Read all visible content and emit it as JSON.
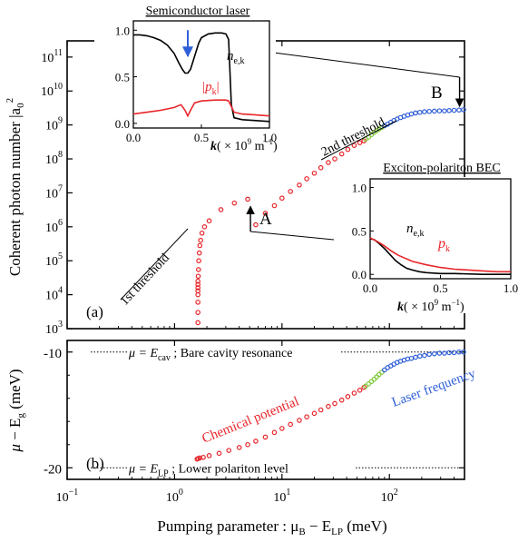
{
  "chart_data": [
    {
      "panel": "a",
      "type": "scatter",
      "panel_label": "(a)",
      "ylabel_text": "Coherent photon number |a",
      "ylabel_sub": "0",
      "ylabel_sup": "2",
      "x_scale": "log",
      "y_scale": "log",
      "xlim": [
        0.1,
        500
      ],
      "ylim": [
        1000,
        300000000000
      ],
      "y_ticks": [
        {
          "v": 1000,
          "base": "10",
          "exp": "3"
        },
        {
          "v": 10000,
          "base": "10",
          "exp": "4"
        },
        {
          "v": 100000,
          "base": "10",
          "exp": "5"
        },
        {
          "v": 1000000,
          "base": "10",
          "exp": "6"
        },
        {
          "v": 10000000,
          "base": "10",
          "exp": "7"
        },
        {
          "v": 100000000,
          "base": "10",
          "exp": "8"
        },
        {
          "v": 1000000000,
          "base": "10",
          "exp": "9"
        },
        {
          "v": 10000000000,
          "base": "10",
          "exp": "10"
        },
        {
          "v": 100000000000,
          "base": "10",
          "exp": "11"
        }
      ],
      "series": [
        {
          "color": "#e8252a",
          "x": [
            1.65,
            1.65,
            1.65,
            1.65,
            1.65,
            1.65,
            1.65,
            1.65,
            1.66,
            1.67,
            1.68,
            1.7,
            1.72,
            1.75,
            1.8,
            1.9,
            2.1,
            2.7,
            3.6,
            4.8,
            5.7,
            7.0,
            8.5,
            10.0,
            12.0,
            14.5,
            17.0,
            20.0,
            23.0,
            27.0,
            31.0,
            36.0,
            41.0,
            47.0,
            53.0,
            58.0
          ],
          "y": [
            1500,
            3000,
            6000,
            10000,
            13000,
            16000,
            20000,
            25000,
            35000,
            55000,
            100000,
            170000,
            280000,
            400000,
            650000,
            1000000,
            1500000,
            3200000,
            5000000,
            6500000,
            1150000,
            2500000,
            4200000,
            7000000,
            11000000,
            17000000,
            26000000,
            38000000,
            55000000,
            78000000,
            100000000,
            140000000,
            190000000,
            250000000,
            300000000,
            340000000
          ]
        },
        {
          "color": "#7ec83a",
          "x": [
            60,
            64,
            68,
            72,
            76,
            80,
            85
          ],
          "y": [
            380000000,
            440000000,
            520000000,
            600000000,
            680000000,
            760000000,
            850000000
          ]
        },
        {
          "color": "#2f5fd8",
          "x": [
            90,
            96,
            103,
            110,
            118,
            127,
            137,
            148,
            160,
            175,
            192,
            212,
            235,
            262,
            292,
            325,
            360,
            400,
            445,
            490
          ],
          "y": [
            950000000,
            1050000000,
            1200000000,
            1350000000,
            1500000000,
            1650000000,
            1800000000,
            1950000000,
            2100000000,
            2250000000,
            2350000000,
            2450000000,
            2500000000,
            2550000000,
            2600000000,
            2600000000,
            2650000000,
            2700000000,
            2750000000,
            2800000000
          ]
        }
      ],
      "annotations": {
        "first_threshold": "1st threshold",
        "second_threshold": "2nd threshold",
        "point_a": "A",
        "point_b": "B"
      },
      "annotation_arrows": [
        {
          "label": "A",
          "x": 4.8,
          "y": 6500000
        },
        {
          "label": "B",
          "x": 450,
          "y": 2750000000
        }
      ]
    },
    {
      "panel": "inset-semiconductor",
      "type": "line",
      "title": "Semiconductor laser",
      "xlim": [
        0,
        1
      ],
      "ylim": [
        -0.05,
        1.1
      ],
      "x_ticks": [
        "0.0",
        "0.5",
        "1.0"
      ],
      "y_ticks": [
        "0.0",
        "0.5",
        "1.0"
      ],
      "xlabel_k": "k",
      "xlabel_unit": "( × 10",
      "xlabel_exp": "9",
      "xlabel_end": " m",
      "xlabel_end_exp": "−1",
      "xlabel_close": ")",
      "series": [
        {
          "label_main": "n",
          "label_sub": "e,k",
          "color": "#000000",
          "x": [
            0.0,
            0.05,
            0.1,
            0.15,
            0.2,
            0.25,
            0.3,
            0.33,
            0.36,
            0.38,
            0.4,
            0.42,
            0.45,
            0.48,
            0.5,
            0.55,
            0.6,
            0.65,
            0.68,
            0.7,
            0.71,
            0.72,
            0.74,
            0.8,
            0.9,
            1.0
          ],
          "y": [
            0.95,
            0.95,
            0.94,
            0.92,
            0.89,
            0.84,
            0.75,
            0.66,
            0.58,
            0.54,
            0.54,
            0.58,
            0.72,
            0.86,
            0.92,
            0.96,
            0.97,
            0.97,
            0.96,
            0.9,
            0.55,
            0.2,
            0.06,
            0.04,
            0.03,
            0.02
          ]
        },
        {
          "label_main": "|p",
          "label_sub": "k",
          "label_end": "|",
          "color": "#e8252a",
          "x": [
            0.0,
            0.1,
            0.2,
            0.3,
            0.35,
            0.38,
            0.4,
            0.42,
            0.45,
            0.5,
            0.6,
            0.68,
            0.7,
            0.72,
            0.74,
            0.8,
            0.9,
            1.0
          ],
          "y": [
            0.1,
            0.12,
            0.14,
            0.17,
            0.2,
            0.14,
            0.08,
            0.14,
            0.22,
            0.24,
            0.25,
            0.25,
            0.24,
            0.18,
            0.12,
            0.1,
            0.09,
            0.08
          ]
        }
      ],
      "arrow": {
        "x": 0.4,
        "y_from": 1.0,
        "y_to": 0.72,
        "color": "#2f5fd8"
      }
    },
    {
      "panel": "inset-polariton",
      "type": "line",
      "title": "Exciton-polariton BEC",
      "xlim": [
        0,
        1
      ],
      "ylim": [
        -0.05,
        1.1
      ],
      "x_ticks": [
        "0.0",
        "0.5",
        "1.0"
      ],
      "y_ticks": [
        "0.0",
        "0.5",
        "1.0"
      ],
      "xlabel_k": "k",
      "xlabel_unit": "( × 10",
      "xlabel_exp": "9",
      "xlabel_end": " m",
      "xlabel_end_exp": "−1",
      "xlabel_close": ")",
      "series": [
        {
          "label_main": "n",
          "label_sub": "e,k",
          "color": "#000000",
          "x": [
            0.0,
            0.03,
            0.06,
            0.1,
            0.14,
            0.18,
            0.22,
            0.26,
            0.3,
            0.35,
            0.4,
            0.5,
            0.6,
            0.8,
            1.0
          ],
          "y": [
            0.41,
            0.4,
            0.36,
            0.3,
            0.23,
            0.16,
            0.11,
            0.07,
            0.05,
            0.03,
            0.02,
            0.01,
            0.01,
            0.0,
            0.0
          ]
        },
        {
          "label_main": "p",
          "label_sub": "k",
          "color": "#e8252a",
          "x": [
            0.0,
            0.05,
            0.1,
            0.15,
            0.2,
            0.3,
            0.4,
            0.5,
            0.6,
            0.7,
            0.8,
            0.9,
            1.0
          ],
          "y": [
            0.42,
            0.38,
            0.33,
            0.27,
            0.22,
            0.15,
            0.11,
            0.08,
            0.06,
            0.05,
            0.04,
            0.03,
            0.03
          ]
        }
      ]
    },
    {
      "panel": "b",
      "type": "scatter",
      "panel_label": "(b)",
      "ylabel_mu": "μ",
      "ylabel_minus": " − E",
      "ylabel_sub": "g",
      "ylabel_unit": " (meV)",
      "xlabel_text": "Pumping parameter : μ",
      "xlabel_sub_b": "B",
      "xlabel_minus": " − E",
      "xlabel_sub_lp": "LP",
      "xlabel_unit": " (meV)",
      "x_scale": "log",
      "xlim": [
        0.1,
        500
      ],
      "ylim": [
        -21,
        -9
      ],
      "y_ticks": [
        "-10",
        "-20"
      ],
      "y_tick_values": [
        -10,
        -20
      ],
      "x_ticks": [
        {
          "v": 0.1,
          "base": "10",
          "exp": "−1"
        },
        {
          "v": 1,
          "base": "10",
          "exp": "0"
        },
        {
          "v": 10,
          "base": "10",
          "exp": "1"
        },
        {
          "v": 100,
          "base": "10",
          "exp": "2"
        }
      ],
      "reference_lines": [
        {
          "y": -10,
          "mu": "μ = E",
          "sub": "cav",
          "text": " ; Bare cavity resonance"
        },
        {
          "y": -20,
          "mu": "μ = E",
          "sub": "LP",
          "text": " ; Lower polariton level"
        }
      ],
      "series": [
        {
          "name": "Chemical potential",
          "color": "#e8252a",
          "x": [
            1.62,
            1.66,
            1.72,
            1.85,
            2.1,
            2.6,
            3.2,
            4.0,
            4.8,
            5.7,
            7.0,
            8.5,
            10.0,
            12.0,
            14.5,
            17.0,
            20.0,
            23.0,
            27.0,
            31.0,
            36.0,
            41.0,
            47.0,
            53.0,
            58.0
          ],
          "y": [
            -19.25,
            -19.2,
            -19.15,
            -19.1,
            -18.95,
            -18.75,
            -18.5,
            -18.25,
            -18.0,
            -17.7,
            -17.35,
            -16.95,
            -16.6,
            -16.25,
            -15.9,
            -15.6,
            -15.3,
            -15.0,
            -14.7,
            -14.45,
            -14.15,
            -13.85,
            -13.55,
            -13.3,
            -13.05
          ]
        },
        {
          "color": "#7ec83a",
          "x": [
            60,
            64,
            68,
            72,
            76,
            80,
            85
          ],
          "y": [
            -12.95,
            -12.75,
            -12.55,
            -12.35,
            -12.15,
            -11.95,
            -11.75
          ]
        },
        {
          "name": "Laser frequency",
          "color": "#2f5fd8",
          "x": [
            90,
            96,
            103,
            110,
            118,
            127,
            137,
            148,
            160,
            175,
            192,
            212,
            235,
            262,
            292,
            325,
            360,
            400,
            445,
            490
          ],
          "y": [
            -11.55,
            -11.35,
            -11.2,
            -11.05,
            -10.9,
            -10.8,
            -10.7,
            -10.6,
            -10.55,
            -10.45,
            -10.35,
            -10.3,
            -10.2,
            -10.15,
            -10.1,
            -10.1,
            -10.05,
            -10.05,
            -10.0,
            -10.0
          ]
        }
      ]
    }
  ]
}
